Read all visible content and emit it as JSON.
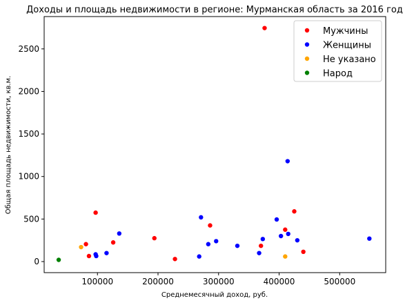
{
  "chart_data": {
    "type": "scatter",
    "title": "Доходы и площадь недвижимости в регионе: Мурманская область за 2016 год",
    "xlabel": "Среднемесячный доход, руб.",
    "ylabel": "Общая площадь недвижимости, кв.м.",
    "xlim": [
      12000,
      576000
    ],
    "ylim": [
      -130,
      2880
    ],
    "xticks": [
      100000,
      200000,
      300000,
      400000,
      500000
    ],
    "xtick_labels": [
      "100000",
      "200000",
      "300000",
      "400000",
      "500000"
    ],
    "yticks": [
      0,
      500,
      1000,
      1500,
      2000,
      2500
    ],
    "ytick_labels": [
      "0",
      "500",
      "1000",
      "1500",
      "2000",
      "2500"
    ],
    "grid": false,
    "legend_position": "top-right",
    "series": [
      {
        "name": "Мужчины",
        "color": "#ff0000",
        "points": [
          [
            376000,
            2745
          ],
          [
            97000,
            575
          ],
          [
            425000,
            590
          ],
          [
            410000,
            375
          ],
          [
            286000,
            425
          ],
          [
            194000,
            275
          ],
          [
            126000,
            225
          ],
          [
            81000,
            205
          ],
          [
            370000,
            185
          ],
          [
            440000,
            115
          ],
          [
            86000,
            65
          ],
          [
            228000,
            30
          ]
        ]
      },
      {
        "name": "Женщины",
        "color": "#0000ff",
        "points": [
          [
            414000,
            1180
          ],
          [
            271000,
            520
          ],
          [
            396000,
            495
          ],
          [
            136000,
            330
          ],
          [
            415000,
            325
          ],
          [
            403000,
            300
          ],
          [
            549000,
            270
          ],
          [
            373000,
            265
          ],
          [
            430000,
            250
          ],
          [
            296000,
            240
          ],
          [
            283000,
            205
          ],
          [
            331000,
            185
          ],
          [
            115000,
            100
          ],
          [
            367000,
            100
          ],
          [
            97000,
            85
          ],
          [
            98000,
            65
          ],
          [
            268000,
            60
          ]
        ]
      },
      {
        "name": "Не указано",
        "color": "#ffa500",
        "points": [
          [
            73000,
            170
          ],
          [
            410000,
            60
          ]
        ]
      },
      {
        "name": "Народ",
        "color": "#008000",
        "points": [
          [
            36000,
            20
          ]
        ]
      }
    ]
  }
}
